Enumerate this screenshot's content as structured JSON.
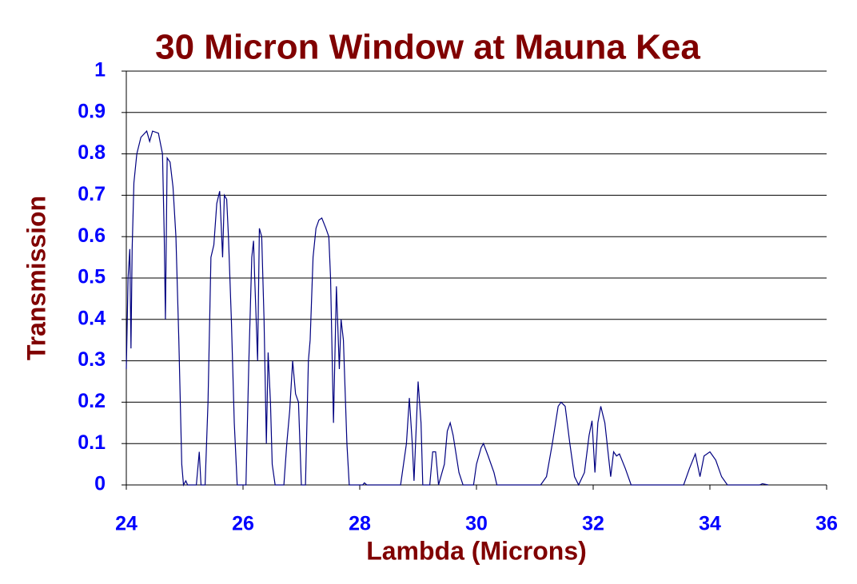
{
  "chart_data": {
    "type": "line",
    "title": "30 Micron Window at Mauna Kea",
    "x_label": "Lambda (Microns)",
    "y_label": "Transmission",
    "color": "#000080",
    "x": [
      24.0,
      24.03,
      24.06,
      24.08,
      24.1,
      24.13,
      24.18,
      24.25,
      24.35,
      24.4,
      24.45,
      24.55,
      24.62,
      24.65,
      24.67,
      24.7,
      24.75,
      24.8,
      24.85,
      24.9,
      24.95,
      24.98,
      25.02,
      25.05,
      25.2,
      25.25,
      25.28,
      25.35,
      25.4,
      25.45,
      25.5,
      25.55,
      25.6,
      25.65,
      25.68,
      25.72,
      25.75,
      25.8,
      25.85,
      25.9,
      26.05,
      26.1,
      26.15,
      26.18,
      26.2,
      26.25,
      26.28,
      26.32,
      26.36,
      26.4,
      26.43,
      26.47,
      26.5,
      26.55,
      26.7,
      26.75,
      26.8,
      26.85,
      26.9,
      26.95,
      27.0,
      27.07,
      27.12,
      27.15,
      27.2,
      27.25,
      27.3,
      27.35,
      27.42,
      27.47,
      27.5,
      27.55,
      27.6,
      27.65,
      27.68,
      27.72,
      27.78,
      27.82,
      28.05,
      28.08,
      28.12,
      28.7,
      28.8,
      28.85,
      28.9,
      28.93,
      29.0,
      29.05,
      29.08,
      29.2,
      29.25,
      29.3,
      29.35,
      29.45,
      29.5,
      29.55,
      29.6,
      29.7,
      29.77,
      29.95,
      30.0,
      30.08,
      30.12,
      30.2,
      30.3,
      30.35,
      31.1,
      31.2,
      31.3,
      31.4,
      31.45,
      31.52,
      31.6,
      31.68,
      31.75,
      31.85,
      31.93,
      31.98,
      32.03,
      32.08,
      32.13,
      32.2,
      32.3,
      32.35,
      32.4,
      32.45,
      32.55,
      32.65,
      33.55,
      33.65,
      33.75,
      33.83,
      33.9,
      34.0,
      34.1,
      34.2,
      34.3,
      34.85,
      34.9,
      35.0
    ],
    "values": [
      0.28,
      0.5,
      0.57,
      0.33,
      0.57,
      0.73,
      0.8,
      0.84,
      0.855,
      0.83,
      0.855,
      0.85,
      0.8,
      0.6,
      0.4,
      0.79,
      0.78,
      0.72,
      0.6,
      0.35,
      0.05,
      0,
      0.01,
      0,
      0,
      0.08,
      0,
      0,
      0.2,
      0.55,
      0.58,
      0.68,
      0.71,
      0.55,
      0.7,
      0.69,
      0.6,
      0.4,
      0.15,
      0,
      0,
      0.3,
      0.55,
      0.59,
      0.5,
      0.3,
      0.62,
      0.6,
      0.4,
      0.1,
      0.32,
      0.2,
      0.05,
      0,
      0,
      0.1,
      0.18,
      0.3,
      0.22,
      0.2,
      0,
      0,
      0.3,
      0.35,
      0.55,
      0.62,
      0.64,
      0.645,
      0.62,
      0.6,
      0.5,
      0.15,
      0.48,
      0.28,
      0.4,
      0.35,
      0.1,
      0,
      0,
      0.005,
      0,
      0,
      0.1,
      0.21,
      0.1,
      0.01,
      0.25,
      0.15,
      0,
      0,
      0.08,
      0.08,
      0,
      0.05,
      0.13,
      0.15,
      0.12,
      0.03,
      0,
      0,
      0.05,
      0.09,
      0.1,
      0.07,
      0.03,
      0,
      0,
      0.02,
      0.1,
      0.19,
      0.2,
      0.19,
      0.1,
      0.02,
      0,
      0.03,
      0.12,
      0.155,
      0.03,
      0.15,
      0.19,
      0.15,
      0.02,
      0.08,
      0.07,
      0.075,
      0.04,
      0,
      0,
      0.04,
      0.075,
      0.02,
      0.07,
      0.08,
      0.06,
      0.02,
      0,
      0,
      0.003,
      0
    ],
    "xlim": [
      24,
      36
    ],
    "xticks": [
      24,
      26,
      28,
      30,
      32,
      34,
      36
    ],
    "ylim": [
      0,
      1
    ],
    "yticks": [
      0,
      0.1,
      0.2,
      0.3,
      0.4,
      0.5,
      0.6,
      0.7,
      0.8,
      0.9,
      1
    ],
    "grid": true
  }
}
